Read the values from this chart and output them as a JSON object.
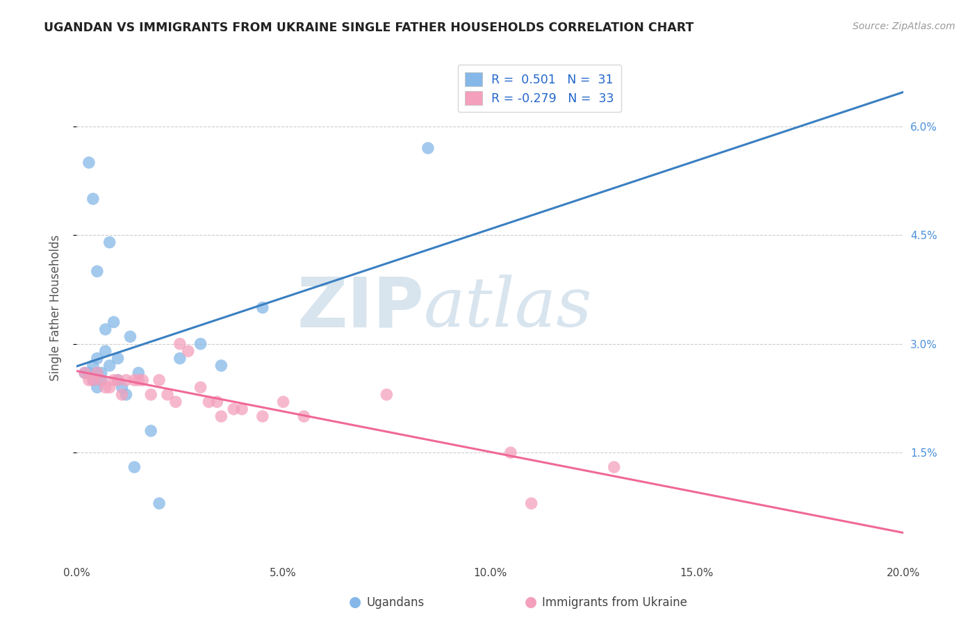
{
  "title": "UGANDAN VS IMMIGRANTS FROM UKRAINE SINGLE FATHER HOUSEHOLDS CORRELATION CHART",
  "source": "Source: ZipAtlas.com",
  "ylabel": "Single Father Households",
  "watermark_zip": "ZIP",
  "watermark_atlas": "atlas",
  "x_min": 0.0,
  "x_max": 20.0,
  "y_min": 0.0,
  "y_max": 7.0,
  "y_ticks": [
    1.5,
    3.0,
    4.5,
    6.0
  ],
  "x_ticks": [
    0.0,
    5.0,
    10.0,
    15.0,
    20.0
  ],
  "blue_color": "#85b8e8",
  "pink_color": "#f4a0bc",
  "blue_line_color": "#3a7fc1",
  "pink_line_color": "#f06898",
  "background_color": "#ffffff",
  "ugandan_x": [
    0.2,
    0.3,
    0.4,
    0.4,
    0.5,
    0.5,
    0.5,
    0.6,
    0.6,
    0.7,
    0.7,
    0.8,
    0.8,
    0.9,
    1.0,
    1.0,
    1.1,
    1.2,
    1.3,
    1.4,
    1.5,
    1.8,
    2.0,
    2.5,
    3.0,
    3.5,
    4.5,
    0.3,
    0.4,
    8.5,
    0.5
  ],
  "ugandan_y": [
    2.6,
    2.6,
    2.7,
    2.5,
    2.8,
    2.6,
    2.4,
    2.6,
    2.5,
    3.2,
    2.9,
    2.7,
    4.4,
    3.3,
    2.8,
    2.5,
    2.4,
    2.3,
    3.1,
    1.3,
    2.6,
    1.8,
    0.8,
    2.8,
    3.0,
    2.7,
    3.5,
    5.5,
    5.0,
    5.7,
    4.0
  ],
  "ukraine_x": [
    0.2,
    0.3,
    0.4,
    0.5,
    0.6,
    0.7,
    0.8,
    0.9,
    1.0,
    1.1,
    1.2,
    1.4,
    1.5,
    1.6,
    1.8,
    2.0,
    2.2,
    2.4,
    2.5,
    2.7,
    3.0,
    3.2,
    3.4,
    3.5,
    3.8,
    4.0,
    4.5,
    5.0,
    5.5,
    7.5,
    10.5,
    13.0,
    11.0
  ],
  "ukraine_y": [
    2.6,
    2.5,
    2.5,
    2.6,
    2.5,
    2.4,
    2.4,
    2.5,
    2.5,
    2.3,
    2.5,
    2.5,
    2.5,
    2.5,
    2.3,
    2.5,
    2.3,
    2.2,
    3.0,
    2.9,
    2.4,
    2.2,
    2.2,
    2.0,
    2.1,
    2.1,
    2.0,
    2.2,
    2.0,
    2.3,
    1.5,
    1.3,
    0.8
  ]
}
